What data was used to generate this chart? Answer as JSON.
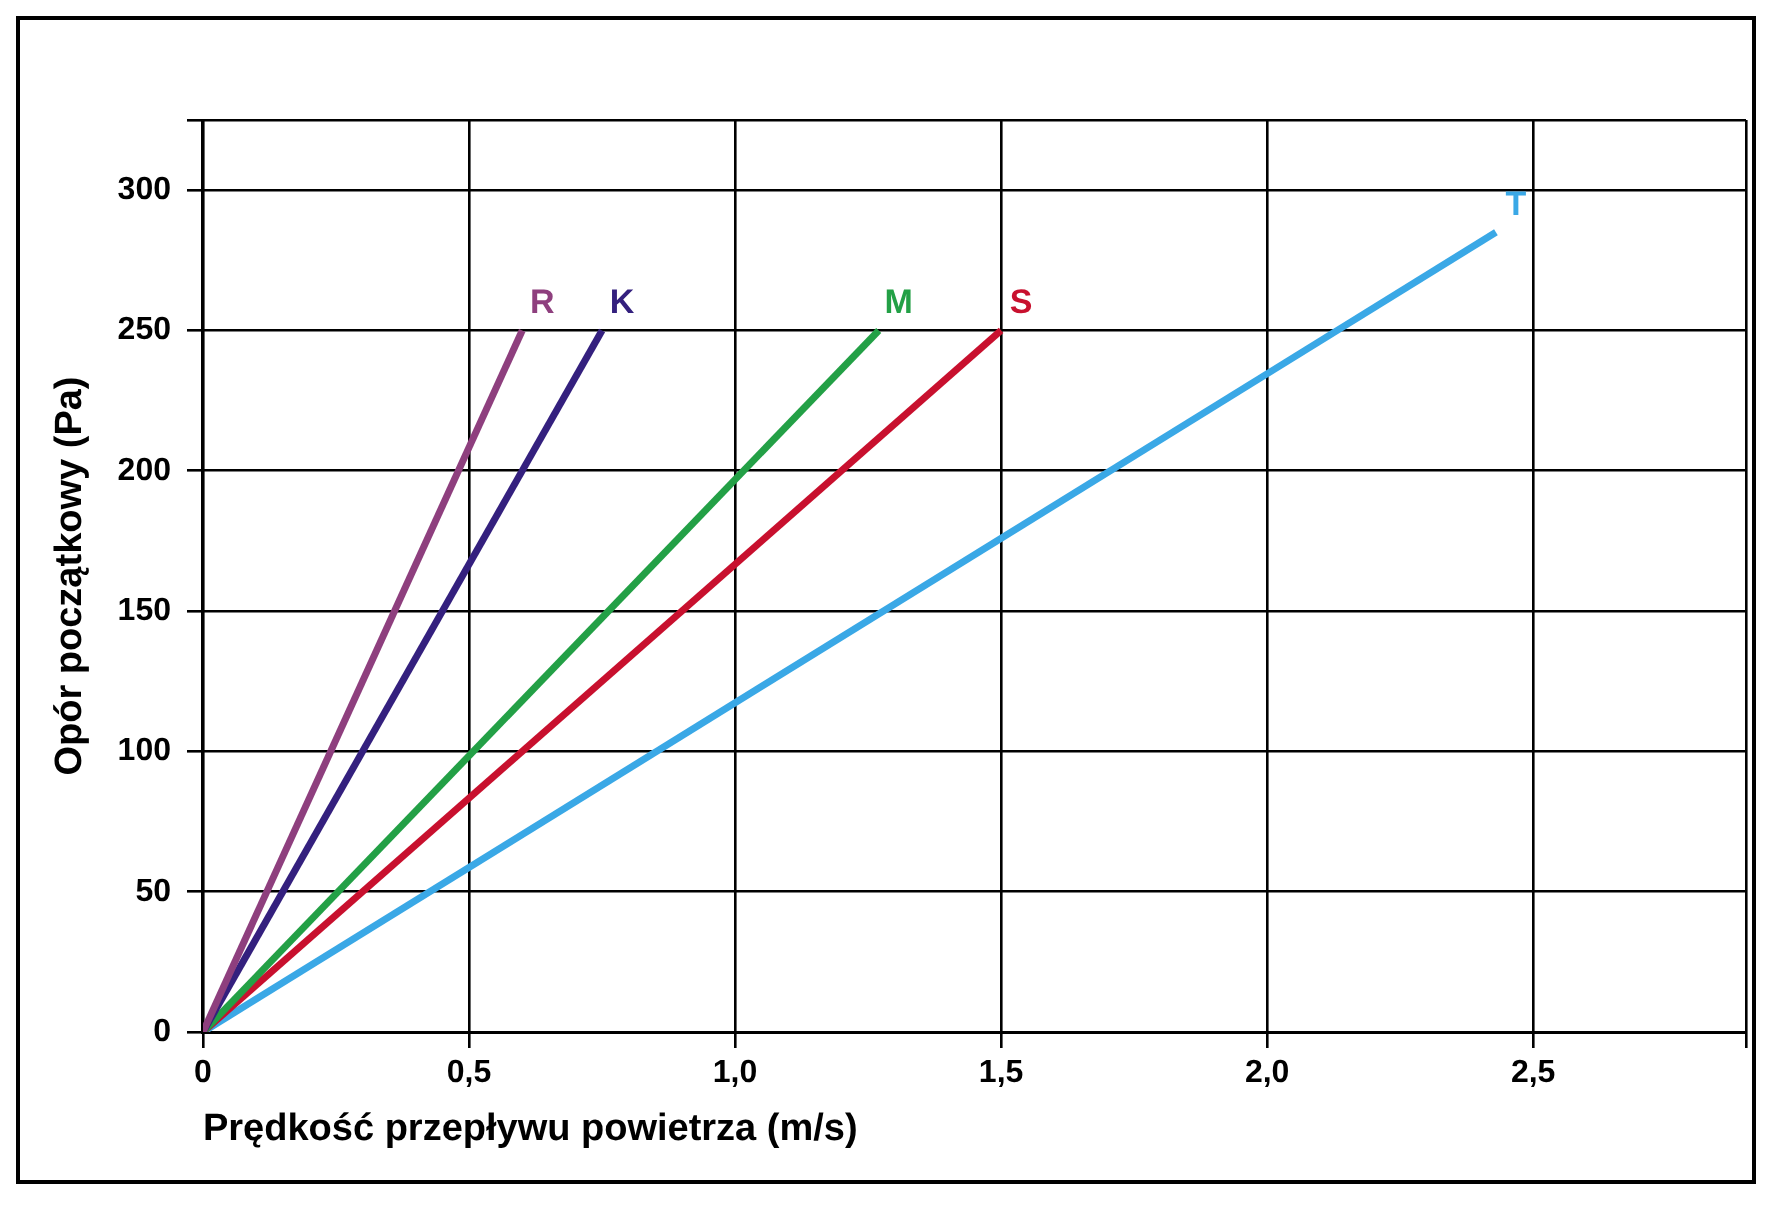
{
  "chart_data": {
    "type": "line",
    "xlabel": "Prędkość przepływu powietrza (m/s)",
    "ylabel": "Opór początkowy (Pa)",
    "xlim": [
      0,
      2.9
    ],
    "ylim": [
      0,
      325
    ],
    "xticks": [
      0,
      {
        "value": 0.5,
        "label": "0,5"
      },
      {
        "value": 1,
        "label": "1,0"
      },
      {
        "value": 1.5,
        "label": "1,5"
      },
      {
        "value": 2,
        "label": "2,0"
      },
      {
        "value": 2.5,
        "label": "2,5"
      }
    ],
    "yticks": [
      0,
      50,
      100,
      150,
      200,
      250,
      300
    ],
    "grid": true,
    "legend": false,
    "marker": "none",
    "line_style": "solid",
    "series": [
      {
        "name": "R",
        "color": "#8e3f7e",
        "x": [
          0,
          0.6
        ],
        "values": [
          0,
          250
        ]
      },
      {
        "name": "K",
        "color": "#34207e",
        "x": [
          0,
          0.75
        ],
        "values": [
          0,
          250
        ]
      },
      {
        "name": "M",
        "color": "#23a046",
        "x": [
          0,
          1.27
        ],
        "values": [
          0,
          250
        ]
      },
      {
        "name": "S",
        "color": "#c8102e",
        "x": [
          0,
          1.5
        ],
        "values": [
          0,
          250
        ]
      },
      {
        "name": "T",
        "color": "#3aa8e6",
        "x": [
          0,
          2.43
        ],
        "values": [
          0,
          285
        ]
      }
    ]
  }
}
